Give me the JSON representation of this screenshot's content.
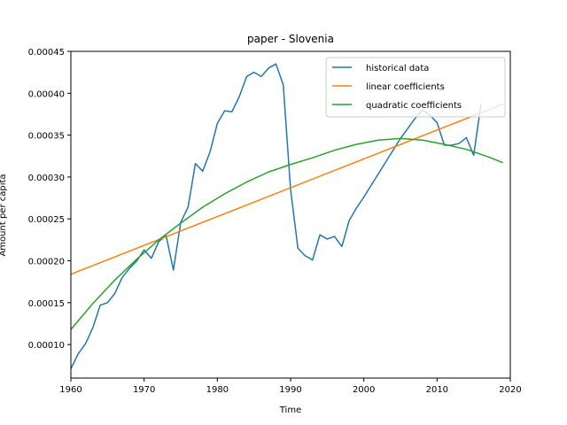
{
  "chart_data": {
    "type": "line",
    "title": "paper - Slovenia",
    "xlabel": "Time",
    "ylabel": "Amount per capita",
    "xlim": [
      1960,
      2020
    ],
    "ylim": [
      6e-05,
      0.00045
    ],
    "x_ticks": [
      1960,
      1970,
      1980,
      1990,
      2000,
      2010,
      2020
    ],
    "x_tick_labels": [
      "1960",
      "1970",
      "1980",
      "1990",
      "2000",
      "2010",
      "2020"
    ],
    "y_ticks": [
      0.0001,
      0.00015,
      0.0002,
      0.00025,
      0.0003,
      0.00035,
      0.0004,
      0.00045
    ],
    "y_tick_labels": [
      "0.00010",
      "0.00015",
      "0.00020",
      "0.00025",
      "0.00030",
      "0.00035",
      "0.00040",
      "0.00045"
    ],
    "grid": false,
    "legend_position": "top-right",
    "series": [
      {
        "name": "historical data",
        "color": "#1f77b4",
        "x": [
          1960,
          1961,
          1962,
          1963,
          1964,
          1965,
          1966,
          1967,
          1968,
          1969,
          1970,
          1971,
          1972,
          1973,
          1974,
          1975,
          1976,
          1977,
          1978,
          1979,
          1980,
          1981,
          1982,
          1983,
          1984,
          1985,
          1986,
          1987,
          1988,
          1989,
          1990,
          1991,
          1992,
          1993,
          1994,
          1995,
          1996,
          1997,
          1998,
          1999,
          2000,
          2001,
          2002,
          2003,
          2004,
          2005,
          2006,
          2007,
          2008,
          2009,
          2010,
          2011,
          2012,
          2013,
          2014,
          2015,
          2016
        ],
        "y": [
          7.1e-05,
          8.9e-05,
          0.000101,
          0.00012,
          0.000147,
          0.00015,
          0.000161,
          0.00018,
          0.000191,
          0.0002,
          0.000213,
          0.000203,
          0.000223,
          0.00023,
          0.000189,
          0.000246,
          0.000264,
          0.000316,
          0.000307,
          0.00033,
          0.000364,
          0.000379,
          0.000378,
          0.000396,
          0.00042,
          0.000425,
          0.00042,
          0.00043,
          0.000435,
          0.00041,
          0.000285,
          0.000215,
          0.000206,
          0.000201,
          0.000231,
          0.000226,
          0.000229,
          0.000217,
          0.000248,
          0.000263,
          0.000276,
          0.00029,
          0.000304,
          0.000318,
          0.000332,
          0.000346,
          0.000358,
          0.00037,
          0.00038,
          0.000374,
          0.000365,
          0.000338,
          0.000338,
          0.00034,
          0.000347,
          0.000326,
          0.000387
        ]
      },
      {
        "name": "linear coefficients",
        "color": "#ff7f0e",
        "x": [
          1960,
          2019
        ],
        "y": [
          0.000184,
          0.000387
        ]
      },
      {
        "name": "quadratic coefficients",
        "color": "#2ca02c",
        "x": [
          1960,
          1963,
          1966,
          1969,
          1972,
          1975,
          1978,
          1981,
          1984,
          1987,
          1990,
          1993,
          1996,
          1999,
          2002,
          2005,
          2008,
          2011,
          2014,
          2017,
          2019
        ],
        "y": [
          0.000118,
          0.000149,
          0.000177,
          0.000202,
          0.000225,
          0.000245,
          0.000264,
          0.00028,
          0.000294,
          0.000306,
          0.000315,
          0.000323,
          0.000332,
          0.000339,
          0.000344,
          0.000346,
          0.000344,
          0.000339,
          0.000333,
          0.000324,
          0.000317
        ]
      }
    ]
  }
}
